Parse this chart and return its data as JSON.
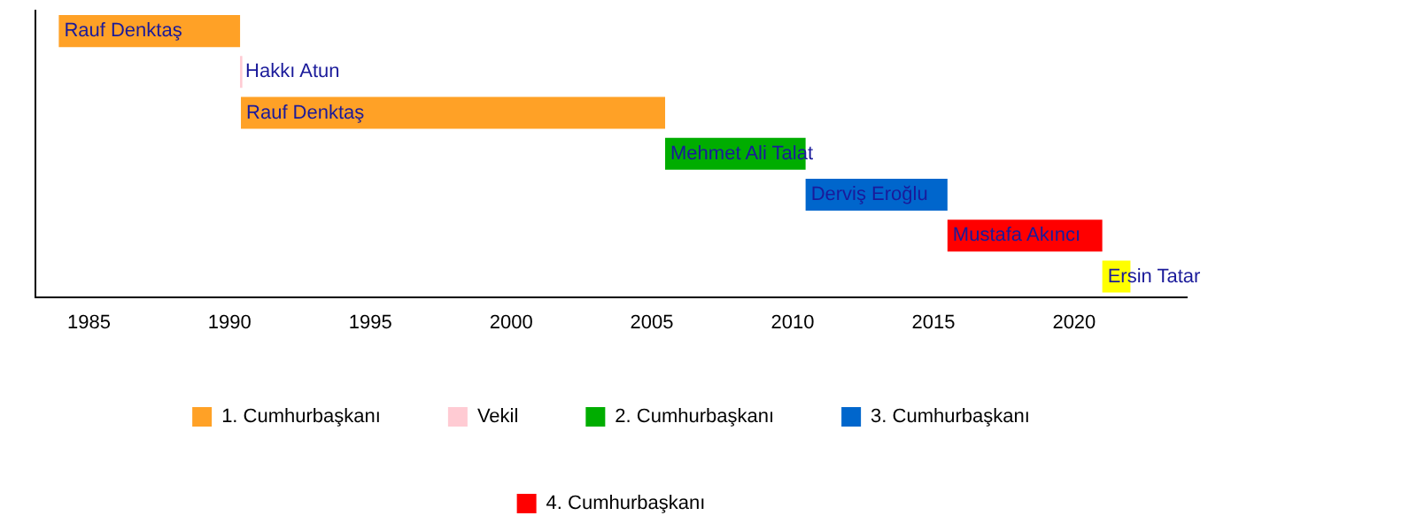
{
  "chart_data": {
    "type": "bar",
    "orientation": "horizontal",
    "categories": [
      null,
      null,
      null,
      null,
      null,
      null,
      null
    ],
    "series": [
      {
        "name": "1. Cumhurbaşkanı",
        "color": "#ffa126",
        "base": [
          1983.93,
          null,
          1990.4,
          null,
          null,
          null,
          null
        ],
        "values": [
          6.44,
          null,
          15.07,
          null,
          null,
          null,
          null
        ],
        "value_labels": [
          "Rauf Denktaş",
          null,
          "Rauf Denktaş",
          null,
          null,
          null,
          null
        ]
      },
      {
        "name": "Vekil",
        "color": "#ffcbd3",
        "base": [
          null,
          1990.37,
          null,
          null,
          null,
          null,
          null
        ],
        "values": [
          null,
          0.08,
          null,
          null,
          null,
          null,
          null
        ],
        "value_labels": [
          null,
          "Hakkı Atun",
          null,
          null,
          null,
          null,
          null
        ]
      },
      {
        "name": "2. Cumhurbaşkanı",
        "color": "#00ad00",
        "base": [
          null,
          null,
          null,
          2005.47,
          null,
          null,
          null
        ],
        "values": [
          null,
          null,
          null,
          4.99,
          null,
          null,
          null
        ],
        "value_labels": [
          null,
          null,
          null,
          "Mehmet Ali Talat",
          null,
          null,
          null
        ]
      },
      {
        "name": "3. Cumhurbaşkanı",
        "color": "#0066cc",
        "base": [
          null,
          null,
          null,
          null,
          2010.46,
          null,
          null
        ],
        "values": [
          null,
          null,
          null,
          null,
          5.04,
          null,
          null
        ],
        "value_labels": [
          null,
          null,
          null,
          null,
          "Derviş Eroğlu",
          null,
          null
        ]
      },
      {
        "name": "4. Cumhurbaşkanı",
        "color": "#ff0000",
        "base": [
          null,
          null,
          null,
          null,
          null,
          2015.5,
          2021.0
        ],
        "values": [
          null,
          null,
          null,
          null,
          null,
          5.5,
          1.0
        ],
        "colors": [
          null,
          null,
          null,
          null,
          null,
          "#ff0000",
          "#ffff00"
        ],
        "value_labels": [
          null,
          null,
          null,
          null,
          null,
          "Mustafa Akıncı",
          "Ersin Tatar"
        ]
      }
    ],
    "xlim": [
      1983.1,
      2024.0
    ],
    "xticks": [
      1985,
      1990,
      1995,
      2000,
      2005,
      2010,
      2015,
      2020
    ],
    "grid": false,
    "legend": "bottom"
  }
}
